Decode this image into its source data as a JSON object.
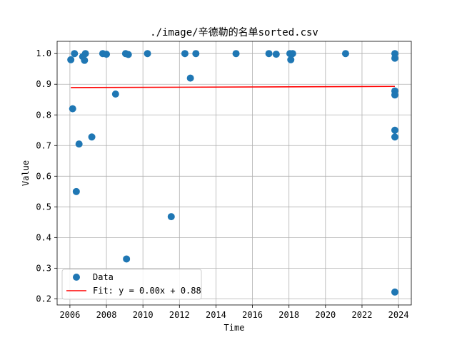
{
  "chart_data": {
    "type": "scatter",
    "title": "./image/辛德勒的名单sorted.csv",
    "xlabel": "Time",
    "ylabel": "Value",
    "xlim": [
      2005.3,
      2024.7
    ],
    "ylim": [
      0.18,
      1.04
    ],
    "xticks": [
      2006,
      2008,
      2010,
      2012,
      2014,
      2016,
      2018,
      2020,
      2022,
      2024
    ],
    "yticks": [
      0.2,
      0.3,
      0.4,
      0.5,
      0.6,
      0.7,
      0.8,
      0.9,
      1.0
    ],
    "grid": true,
    "legend_position": "lower-left",
    "series": [
      {
        "name": "Data",
        "kind": "scatter",
        "color": "#1f77b4",
        "points": [
          [
            2006.05,
            0.98
          ],
          [
            2006.15,
            0.82
          ],
          [
            2006.25,
            1.0
          ],
          [
            2006.35,
            0.55
          ],
          [
            2006.5,
            0.705
          ],
          [
            2006.7,
            0.99
          ],
          [
            2006.8,
            0.978
          ],
          [
            2006.85,
            1.0
          ],
          [
            2007.2,
            0.728
          ],
          [
            2007.8,
            1.0
          ],
          [
            2008.0,
            0.998
          ],
          [
            2008.5,
            0.868
          ],
          [
            2009.05,
            1.0
          ],
          [
            2009.1,
            0.33
          ],
          [
            2009.2,
            0.997
          ],
          [
            2010.25,
            1.0
          ],
          [
            2011.55,
            0.468
          ],
          [
            2012.3,
            1.0
          ],
          [
            2012.6,
            0.92
          ],
          [
            2012.9,
            1.0
          ],
          [
            2015.1,
            1.0
          ],
          [
            2016.9,
            1.0
          ],
          [
            2017.3,
            0.998
          ],
          [
            2018.05,
            1.0
          ],
          [
            2018.1,
            0.98
          ],
          [
            2018.2,
            1.0
          ],
          [
            2021.1,
            1.0
          ],
          [
            2023.8,
            1.0
          ],
          [
            2023.8,
            0.985
          ],
          [
            2023.8,
            0.878
          ],
          [
            2023.8,
            0.865
          ],
          [
            2023.8,
            0.75
          ],
          [
            2023.8,
            0.728
          ],
          [
            2023.8,
            0.222
          ]
        ]
      },
      {
        "name": "Fit: y = 0.00x + 0.88",
        "kind": "line",
        "color": "#ff0000",
        "points": [
          [
            2006.05,
            0.889
          ],
          [
            2023.8,
            0.893
          ]
        ]
      }
    ]
  }
}
